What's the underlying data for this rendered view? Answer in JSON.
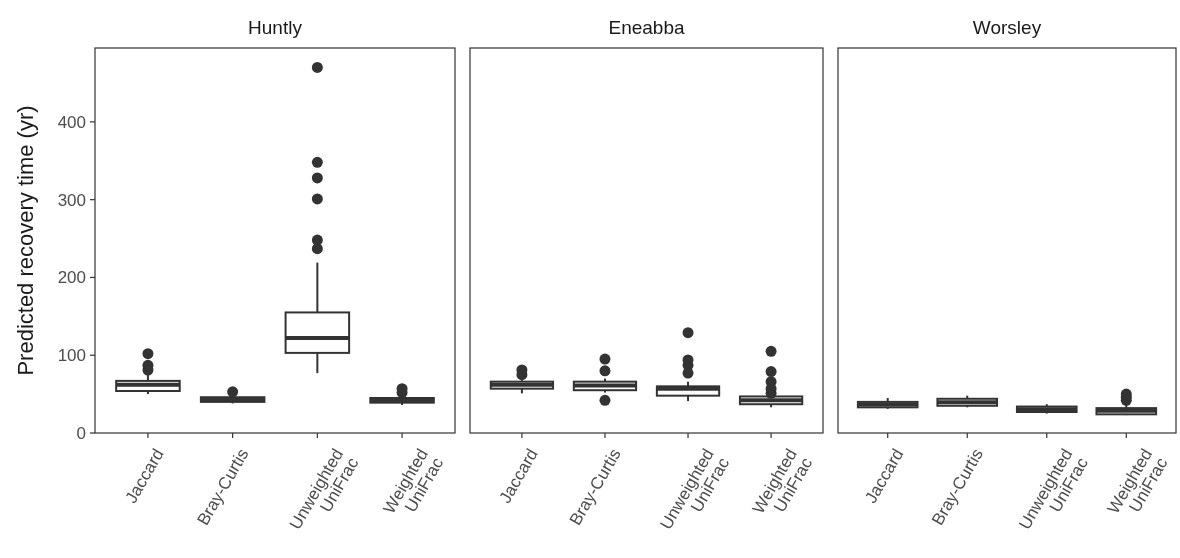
{
  "chart_data": [
    {
      "type": "box",
      "title": "Huntly",
      "ylabel": "Predicted recovery time (yr)",
      "categories": [
        "Jaccard",
        "Bray-Curtis",
        "Unweighted UniFrac",
        "Weighted UniFrac"
      ],
      "ylim": [
        0,
        495
      ],
      "yticks": [
        0,
        100,
        200,
        300,
        400
      ],
      "grid": false,
      "boxes": [
        {
          "low": 50,
          "q1": 54,
          "median": 62,
          "q3": 67,
          "high": 75,
          "outliers": [
            81,
            87,
            102
          ]
        },
        {
          "low": 38,
          "q1": 40,
          "median": 43,
          "q3": 46,
          "high": 47,
          "outliers": [
            53
          ]
        },
        {
          "low": 77,
          "q1": 103,
          "median": 122,
          "q3": 155,
          "high": 219,
          "outliers": [
            237,
            248,
            301,
            328,
            348,
            470
          ]
        },
        {
          "low": 36,
          "q1": 39,
          "median": 42,
          "q3": 45,
          "high": 47,
          "outliers": [
            52,
            57
          ]
        }
      ]
    },
    {
      "type": "box",
      "title": "Eneabba",
      "categories": [
        "Jaccard",
        "Bray-Curtis",
        "Unweighted UniFrac",
        "Weighted UniFrac"
      ],
      "ylim": [
        0,
        495
      ],
      "tick_labels": "x",
      "grid": false,
      "boxes": [
        {
          "low": 51,
          "q1": 57,
          "median": 62,
          "q3": 66,
          "high": 68,
          "outliers": [
            75,
            81
          ]
        },
        {
          "low": 52,
          "q1": 55,
          "median": 61,
          "q3": 66,
          "high": 70,
          "outliers": [
            42,
            80,
            95
          ]
        },
        {
          "low": 41,
          "q1": 48,
          "median": 57,
          "q3": 60,
          "high": 66,
          "outliers": [
            77,
            87,
            94,
            129
          ]
        },
        {
          "low": 33,
          "q1": 37,
          "median": 42,
          "q3": 47,
          "high": 48,
          "outliers": [
            51,
            57,
            66,
            79,
            105
          ]
        }
      ]
    },
    {
      "type": "box",
      "title": "Worsley",
      "categories": [
        "Jaccard",
        "Bray-Curtis",
        "Unweighted UniFrac",
        "Weighted UniFrac"
      ],
      "ylim": [
        0,
        495
      ],
      "tick_labels": "x",
      "grid": false,
      "boxes": [
        {
          "low": 31,
          "q1": 33,
          "median": 36.5,
          "q3": 40,
          "high": 45
        },
        {
          "low": 33,
          "q1": 35,
          "median": 39.5,
          "q3": 44,
          "high": 48
        },
        {
          "low": 25,
          "q1": 27,
          "median": 30.5,
          "q3": 34,
          "high": 37
        },
        {
          "low": 23,
          "q1": 24,
          "median": 28.5,
          "q3": 32,
          "high": 36,
          "outliers": [
            42,
            46,
            50
          ]
        }
      ]
    }
  ]
}
